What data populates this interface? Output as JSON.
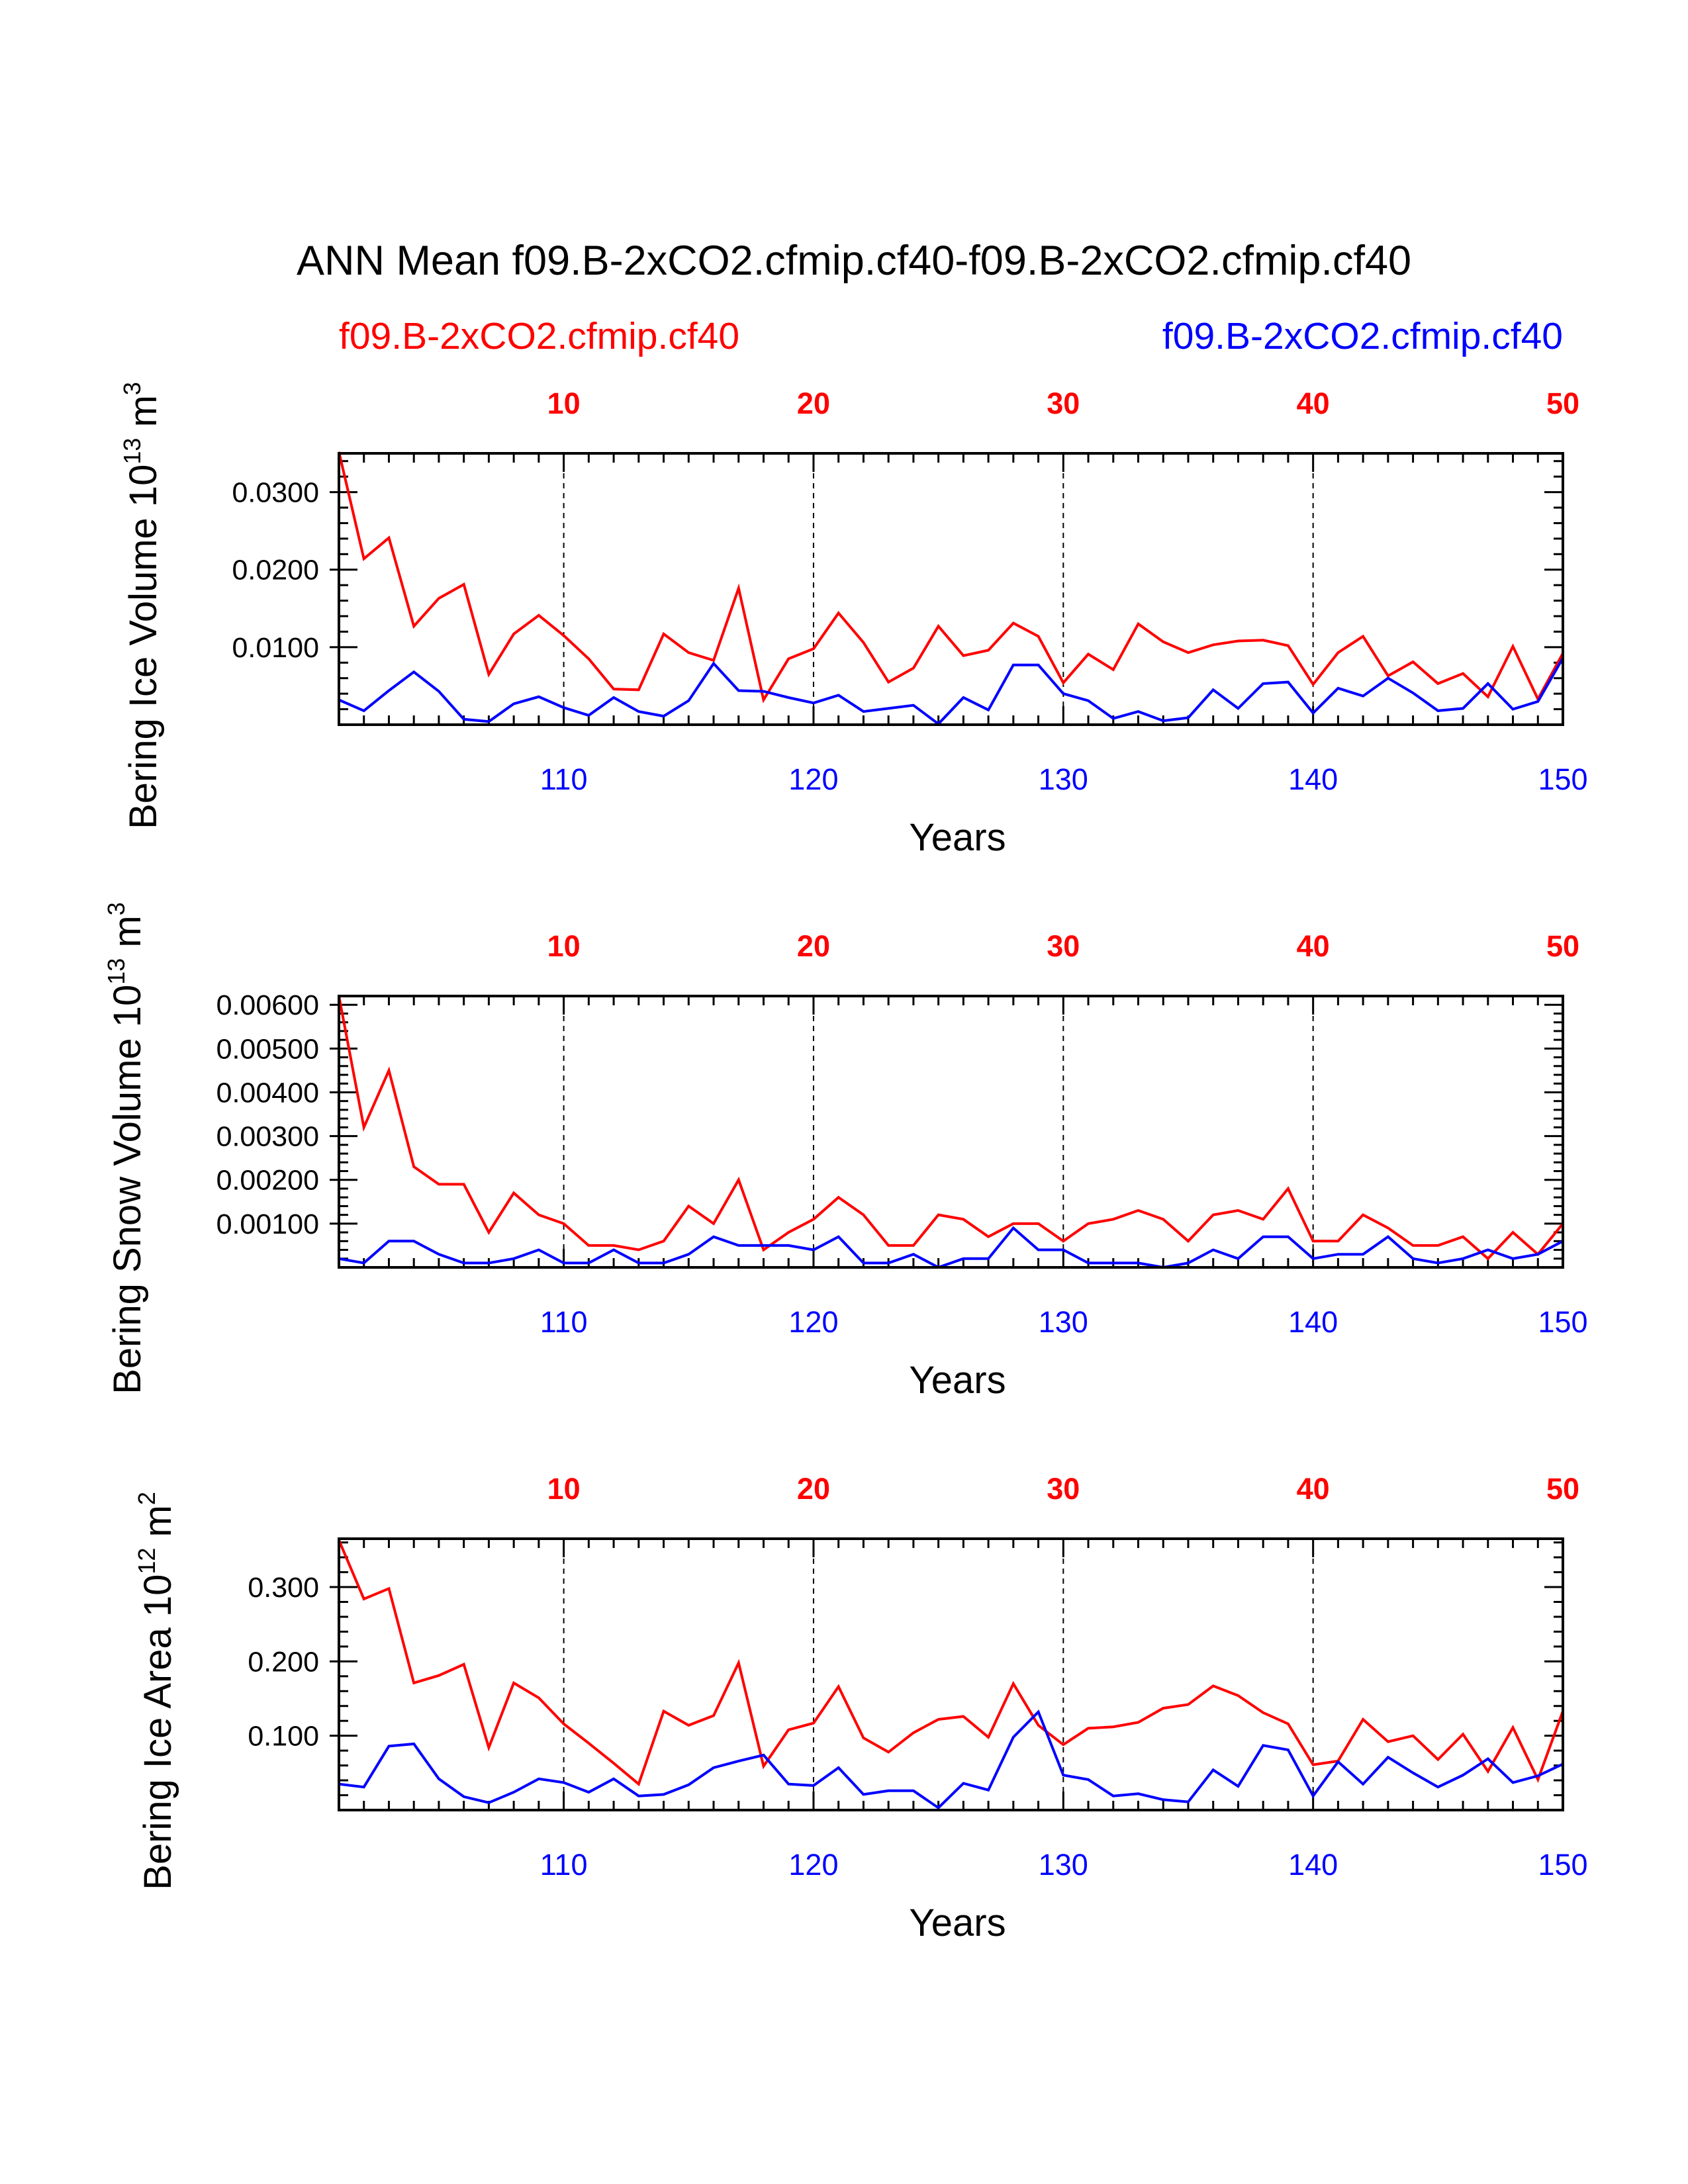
{
  "title": "ANN Mean f09.B-2xCO2.cfmip.cf40-f09.B-2xCO2.cfmip.cf40",
  "legend": {
    "left": "f09.B-2xCO2.cfmip.cf40",
    "right": "f09.B-2xCO2.cfmip.cf40",
    "left_color": "#ff0000",
    "right_color": "#0000ff"
  },
  "chart_data": [
    {
      "type": "line",
      "ylabel_main": "Bering Ice Volume 10",
      "ylabel_exp": "13",
      "ylabel_unit": " m",
      "ylabel_unit_exp": "3",
      "xlabel": "Years",
      "x_bottom_range": [
        101,
        150
      ],
      "x_bottom_ticks": [
        "110",
        "120",
        "130",
        "140",
        "150"
      ],
      "x_top_ticks": [
        "10",
        "20",
        "30",
        "40",
        "50"
      ],
      "ylim": [
        0.0,
        0.035
      ],
      "yticks": [
        0.01,
        0.02,
        0.03
      ],
      "ytick_labels": [
        "0.0100",
        "0.0200",
        "0.0300"
      ],
      "yminor": [
        0.002,
        0.004,
        0.006,
        0.008,
        0.012,
        0.014,
        0.016,
        0.018,
        0.022,
        0.024,
        0.026,
        0.028,
        0.032,
        0.034
      ],
      "series": [
        {
          "name": "f09.B-2xCO2.cfmip.cf40",
          "color": "#ff0000",
          "values": [
            0.0352,
            0.0214,
            0.0241,
            0.0127,
            0.0163,
            0.0181,
            0.0065,
            0.0117,
            0.0141,
            0.0115,
            0.0085,
            0.0046,
            0.0045,
            0.0117,
            0.0093,
            0.0083,
            0.0176,
            0.0032,
            0.0085,
            0.0098,
            0.0144,
            0.0106,
            0.0055,
            0.0073,
            0.0127,
            0.0089,
            0.0096,
            0.0131,
            0.0114,
            0.0054,
            0.0091,
            0.0071,
            0.013,
            0.0107,
            0.0093,
            0.0103,
            0.0108,
            0.0109,
            0.0102,
            0.0052,
            0.0093,
            0.0114,
            0.0063,
            0.0081,
            0.0053,
            0.0066,
            0.0036,
            0.0101,
            0.0033,
            0.0092
          ]
        },
        {
          "name": "f09.B-2xCO2.cfmip.cf40",
          "color": "#0000ff",
          "values": [
            0.0032,
            0.0018,
            0.0044,
            0.0068,
            0.0043,
            0.0007,
            0.0004,
            0.0027,
            0.0036,
            0.0022,
            0.0012,
            0.0035,
            0.0017,
            0.0011,
            0.0031,
            0.0079,
            0.0044,
            0.0043,
            0.0035,
            0.0028,
            0.0038,
            0.0017,
            0.0021,
            0.0025,
            0.0001,
            0.0035,
            0.0019,
            0.0077,
            0.0077,
            0.004,
            0.0031,
            0.0008,
            0.0017,
            0.0005,
            0.0009,
            0.0045,
            0.0021,
            0.0053,
            0.0055,
            0.0015,
            0.0047,
            0.0037,
            0.006,
            0.0041,
            0.0018,
            0.0021,
            0.0053,
            0.002,
            0.003,
            0.0086
          ]
        }
      ]
    },
    {
      "type": "line",
      "ylabel_main": "Bering Snow Volume 10",
      "ylabel_exp": "13",
      "ylabel_unit": " m",
      "ylabel_unit_exp": "3",
      "xlabel": "Years",
      "x_bottom_range": [
        101,
        150
      ],
      "x_bottom_ticks": [
        "110",
        "120",
        "130",
        "140",
        "150"
      ],
      "x_top_ticks": [
        "10",
        "20",
        "30",
        "40",
        "50"
      ],
      "ylim": [
        0.0,
        0.0062
      ],
      "yticks": [
        0.001,
        0.002,
        0.003,
        0.004,
        0.005,
        0.006
      ],
      "ytick_labels": [
        "0.00100",
        "0.00200",
        "0.00300",
        "0.00400",
        "0.00500",
        "0.00600"
      ],
      "yminor": [
        0.0002,
        0.0004,
        0.0006,
        0.0008,
        0.0012,
        0.0014,
        0.0016,
        0.0018,
        0.0022,
        0.0024,
        0.0026,
        0.0028,
        0.0032,
        0.0034,
        0.0036,
        0.0038,
        0.0042,
        0.0044,
        0.0046,
        0.0048,
        0.0052,
        0.0054,
        0.0056,
        0.0058
      ],
      "series": [
        {
          "name": "f09.B-2xCO2.cfmip.cf40",
          "color": "#ff0000",
          "values": [
            0.0062,
            0.0032,
            0.0045,
            0.0023,
            0.0019,
            0.0019,
            0.0008,
            0.0017,
            0.0012,
            0.001,
            0.0005,
            0.0005,
            0.0004,
            0.0006,
            0.0014,
            0.001,
            0.002,
            0.0004,
            0.0008,
            0.0011,
            0.0016,
            0.0012,
            0.0005,
            0.0005,
            0.0012,
            0.0011,
            0.0007,
            0.001,
            0.001,
            0.0006,
            0.001,
            0.0011,
            0.0013,
            0.0011,
            0.0006,
            0.0012,
            0.0013,
            0.0011,
            0.0018,
            0.0006,
            0.0006,
            0.0012,
            0.0009,
            0.0005,
            0.0005,
            0.0007,
            0.0002,
            0.0008,
            0.0003,
            0.001
          ]
        },
        {
          "name": "f09.B-2xCO2.cfmip.cf40",
          "color": "#0000ff",
          "values": [
            0.0002,
            0.0001,
            0.0006,
            0.0006,
            0.0003,
            0.0001,
            0.0001,
            0.0002,
            0.0004,
            0.0001,
            0.0001,
            0.0004,
            0.0001,
            0.0001,
            0.0003,
            0.0007,
            0.0005,
            0.0005,
            0.0005,
            0.0004,
            0.0007,
            0.0001,
            0.0001,
            0.0003,
            0.0,
            0.0002,
            0.0002,
            0.0009,
            0.0004,
            0.0004,
            0.0001,
            0.0001,
            0.0001,
            0.0,
            0.0001,
            0.0004,
            0.0002,
            0.0007,
            0.0007,
            0.0002,
            0.0003,
            0.0003,
            0.0007,
            0.0002,
            0.0001,
            0.0002,
            0.0004,
            0.0002,
            0.0003,
            0.0006
          ]
        }
      ]
    },
    {
      "type": "line",
      "ylabel_main": "Bering Ice Area 10",
      "ylabel_exp": "12",
      "ylabel_unit": " m",
      "ylabel_unit_exp": "2",
      "xlabel": "Years",
      "x_bottom_range": [
        101,
        150
      ],
      "x_bottom_ticks": [
        "110",
        "120",
        "130",
        "140",
        "150"
      ],
      "x_top_ticks": [
        "10",
        "20",
        "30",
        "40",
        "50"
      ],
      "ylim": [
        0.0,
        0.365
      ],
      "yticks": [
        0.1,
        0.2,
        0.3
      ],
      "ytick_labels": [
        "0.100",
        "0.200",
        "0.300"
      ],
      "yminor": [
        0.02,
        0.04,
        0.06,
        0.08,
        0.12,
        0.14,
        0.16,
        0.18,
        0.22,
        0.24,
        0.26,
        0.28,
        0.32,
        0.34,
        0.36
      ],
      "series": [
        {
          "name": "f09.B-2xCO2.cfmip.cf40",
          "color": "#ff0000",
          "values": [
            0.363,
            0.284,
            0.298,
            0.171,
            0.181,
            0.196,
            0.084,
            0.171,
            0.151,
            0.116,
            0.09,
            0.063,
            0.035,
            0.133,
            0.114,
            0.127,
            0.198,
            0.059,
            0.108,
            0.117,
            0.166,
            0.097,
            0.078,
            0.104,
            0.122,
            0.126,
            0.098,
            0.17,
            0.114,
            0.088,
            0.11,
            0.112,
            0.118,
            0.137,
            0.142,
            0.167,
            0.154,
            0.131,
            0.116,
            0.061,
            0.066,
            0.122,
            0.092,
            0.1,
            0.068,
            0.102,
            0.052,
            0.111,
            0.041,
            0.133
          ]
        },
        {
          "name": "f09.B-2xCO2.cfmip.cf40",
          "color": "#0000ff",
          "values": [
            0.035,
            0.031,
            0.086,
            0.089,
            0.042,
            0.018,
            0.01,
            0.024,
            0.042,
            0.037,
            0.024,
            0.042,
            0.019,
            0.021,
            0.034,
            0.057,
            0.066,
            0.074,
            0.035,
            0.033,
            0.057,
            0.021,
            0.026,
            0.026,
            0.003,
            0.036,
            0.027,
            0.098,
            0.132,
            0.047,
            0.041,
            0.019,
            0.022,
            0.014,
            0.011,
            0.054,
            0.032,
            0.087,
            0.081,
            0.019,
            0.065,
            0.035,
            0.071,
            0.05,
            0.031,
            0.047,
            0.069,
            0.037,
            0.046,
            0.062
          ]
        }
      ]
    }
  ]
}
